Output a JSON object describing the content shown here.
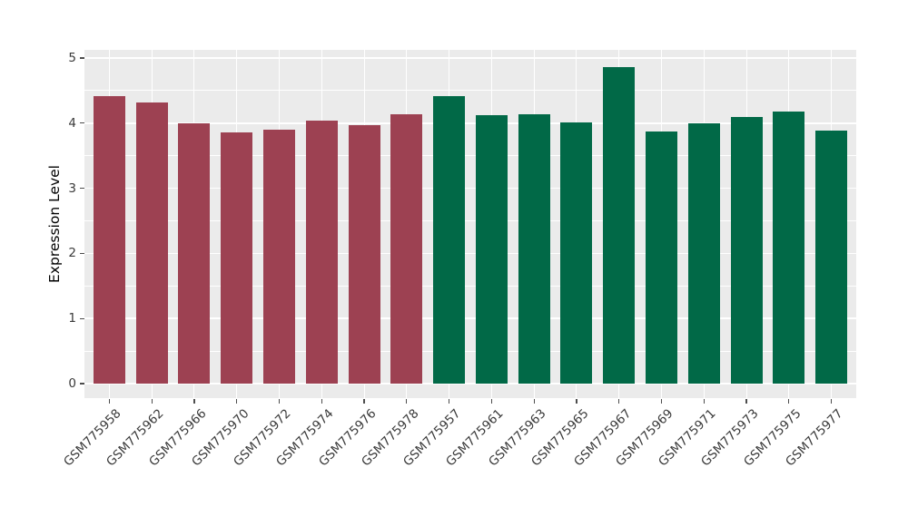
{
  "chart_data": {
    "type": "bar",
    "ylabel": "Expression Level",
    "xlabel": "",
    "ylim": [
      0,
      5
    ],
    "yticks": [
      0,
      1,
      2,
      3,
      4,
      5
    ],
    "grid": "white major and minor horizontal gridlines plus vertical gridline per category on gray panel",
    "legend_position": "none",
    "categories": [
      "GSM775958",
      "GSM775962",
      "GSM775966",
      "GSM775970",
      "GSM775972",
      "GSM775974",
      "GSM775976",
      "GSM775978",
      "GSM775957",
      "GSM775961",
      "GSM775963",
      "GSM775965",
      "GSM775967",
      "GSM775969",
      "GSM775971",
      "GSM775973",
      "GSM775975",
      "GSM775977"
    ],
    "values": [
      4.41,
      4.32,
      4.0,
      3.86,
      3.9,
      4.04,
      3.97,
      4.14,
      4.42,
      4.12,
      4.14,
      4.01,
      4.86,
      3.87,
      4.0,
      4.09,
      4.18,
      3.89
    ],
    "groups": [
      "red",
      "red",
      "red",
      "red",
      "red",
      "red",
      "red",
      "red",
      "green",
      "green",
      "green",
      "green",
      "green",
      "green",
      "green",
      "green",
      "green",
      "green"
    ],
    "group_colors": {
      "red": "#9d4152",
      "green": "#016947"
    }
  },
  "colors": {
    "background": "#ffffff",
    "panel_background": "#ebebeb",
    "gridline": "#ffffff",
    "tick_mark": "#4d4d4d",
    "axis_tick_text": "#3a3a3a",
    "axis_title_text": "#000000"
  }
}
